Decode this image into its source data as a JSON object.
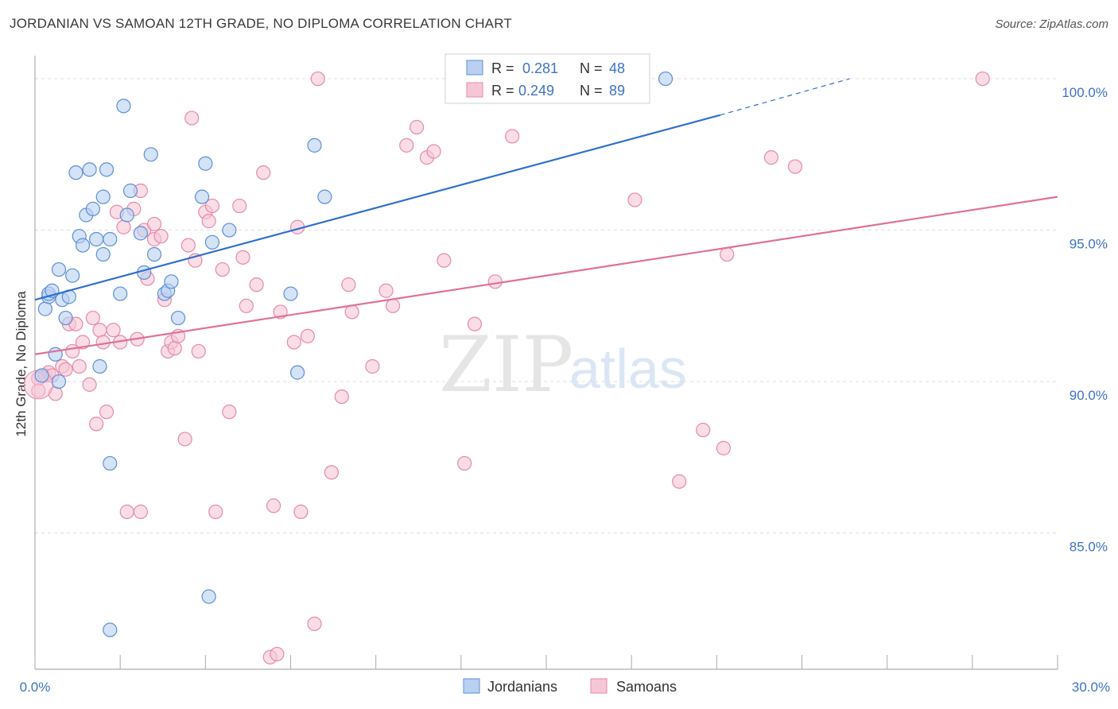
{
  "title": "JORDANIAN VS SAMOAN 12TH GRADE, NO DIPLOMA CORRELATION CHART",
  "source": "Source: ZipAtlas.com",
  "watermark": {
    "zip": "ZIP",
    "atlas": "atlas"
  },
  "colors": {
    "jordanian_fill": "#b9d0f2",
    "jordanian_stroke": "#5c8fd6",
    "jordanian_line": "#2f6fcf",
    "samoan_fill": "#f7c6d6",
    "samoan_stroke": "#e58aaa",
    "samoan_line": "#e0709a",
    "grid": "#dddddd",
    "axis_text": "#3f72c4"
  },
  "legend": {
    "rows": [
      {
        "r_label": "R =",
        "r_value": "0.281",
        "n_label": "N =",
        "n_value": "48"
      },
      {
        "r_label": "R =",
        "r_value": "0.249",
        "n_label": "N =",
        "n_value": "89"
      }
    ]
  },
  "bottom_legend": [
    "Jordanians",
    "Samoans"
  ],
  "chart_data": {
    "type": "scatter",
    "title": "JORDANIAN VS SAMOAN 12TH GRADE, NO DIPLOMA CORRELATION CHART",
    "xlabel": "",
    "ylabel": "12th Grade, No Diploma",
    "xlim": [
      0,
      30
    ],
    "ylim": [
      80.5,
      100.5
    ],
    "x_tick_labels": [
      "0.0%",
      "30.0%"
    ],
    "y_ticks": [
      85,
      90,
      95,
      100
    ],
    "y_tick_labels": [
      "85.0%",
      "90.0%",
      "95.0%",
      "100.0%"
    ],
    "grid": true,
    "series": [
      {
        "name": "Jordanians",
        "r": 0.281,
        "n": 48,
        "trend": {
          "x0": 0,
          "y0": 92.7,
          "x1": 20.1,
          "y1": 98.8,
          "dash_to_x": 23.9,
          "dash_to_y": 100.0
        },
        "points": [
          [
            0.2,
            90.2
          ],
          [
            0.3,
            92.4
          ],
          [
            0.4,
            92.8
          ],
          [
            0.4,
            92.9
          ],
          [
            0.5,
            93.0
          ],
          [
            0.6,
            90.9
          ],
          [
            0.7,
            90.0
          ],
          [
            0.7,
            93.7
          ],
          [
            0.8,
            92.7
          ],
          [
            0.9,
            92.1
          ],
          [
            1.0,
            92.8
          ],
          [
            1.1,
            93.5
          ],
          [
            1.2,
            96.9
          ],
          [
            1.3,
            94.8
          ],
          [
            1.4,
            94.5
          ],
          [
            1.5,
            95.5
          ],
          [
            1.6,
            97.0
          ],
          [
            1.7,
            95.7
          ],
          [
            1.8,
            94.7
          ],
          [
            1.9,
            90.5
          ],
          [
            2.0,
            96.1
          ],
          [
            2.0,
            94.2
          ],
          [
            2.1,
            97.0
          ],
          [
            2.2,
            94.7
          ],
          [
            2.5,
            92.9
          ],
          [
            2.6,
            99.1
          ],
          [
            2.7,
            95.5
          ],
          [
            2.8,
            96.3
          ],
          [
            3.1,
            94.9
          ],
          [
            3.2,
            93.6
          ],
          [
            3.4,
            97.5
          ],
          [
            3.5,
            94.2
          ],
          [
            3.8,
            92.9
          ],
          [
            3.9,
            93.0
          ],
          [
            4.0,
            93.3
          ],
          [
            4.2,
            92.1
          ],
          [
            4.9,
            96.1
          ],
          [
            5.0,
            97.2
          ],
          [
            5.2,
            94.6
          ],
          [
            5.7,
            95.0
          ],
          [
            7.5,
            92.9
          ],
          [
            7.7,
            90.3
          ],
          [
            8.2,
            97.8
          ],
          [
            8.5,
            96.1
          ],
          [
            2.2,
            87.3
          ],
          [
            5.1,
            82.9
          ],
          [
            2.2,
            81.8
          ],
          [
            18.5,
            100.0
          ]
        ]
      },
      {
        "name": "Samoans",
        "r": 0.249,
        "n": 89,
        "trend": {
          "x0": 0,
          "y0": 90.9,
          "x1": 30,
          "y1": 96.1
        },
        "points": [
          [
            0.1,
            90.1
          ],
          [
            0.1,
            89.7
          ],
          [
            0.3,
            90.2
          ],
          [
            0.4,
            90.3
          ],
          [
            0.5,
            90.2
          ],
          [
            0.6,
            89.6
          ],
          [
            0.8,
            90.5
          ],
          [
            0.9,
            90.4
          ],
          [
            1.0,
            91.9
          ],
          [
            1.1,
            91.0
          ],
          [
            1.2,
            91.9
          ],
          [
            1.3,
            90.5
          ],
          [
            1.4,
            91.3
          ],
          [
            1.6,
            89.9
          ],
          [
            1.7,
            92.1
          ],
          [
            1.8,
            88.6
          ],
          [
            1.9,
            91.7
          ],
          [
            2.0,
            91.3
          ],
          [
            2.1,
            89.0
          ],
          [
            2.3,
            91.7
          ],
          [
            2.4,
            95.6
          ],
          [
            2.5,
            91.3
          ],
          [
            2.6,
            95.1
          ],
          [
            2.7,
            85.7
          ],
          [
            2.9,
            95.7
          ],
          [
            3.0,
            91.4
          ],
          [
            3.1,
            96.3
          ],
          [
            3.1,
            85.7
          ],
          [
            3.2,
            95.0
          ],
          [
            3.3,
            93.4
          ],
          [
            3.5,
            94.7
          ],
          [
            3.5,
            95.2
          ],
          [
            3.7,
            94.8
          ],
          [
            3.8,
            92.7
          ],
          [
            3.9,
            91.0
          ],
          [
            4.0,
            91.3
          ],
          [
            4.1,
            91.1
          ],
          [
            4.2,
            91.5
          ],
          [
            4.4,
            88.1
          ],
          [
            4.5,
            94.5
          ],
          [
            4.6,
            98.7
          ],
          [
            4.7,
            94.0
          ],
          [
            4.8,
            91.0
          ],
          [
            5.0,
            95.6
          ],
          [
            5.1,
            95.3
          ],
          [
            5.2,
            95.8
          ],
          [
            5.3,
            85.7
          ],
          [
            5.5,
            93.7
          ],
          [
            5.7,
            89.0
          ],
          [
            6.0,
            95.8
          ],
          [
            6.1,
            94.1
          ],
          [
            6.2,
            92.5
          ],
          [
            6.5,
            93.2
          ],
          [
            6.7,
            96.9
          ],
          [
            6.9,
            80.9
          ],
          [
            7.0,
            85.9
          ],
          [
            7.1,
            81.0
          ],
          [
            7.2,
            92.3
          ],
          [
            7.6,
            91.3
          ],
          [
            7.7,
            95.1
          ],
          [
            7.8,
            85.7
          ],
          [
            8.0,
            91.5
          ],
          [
            8.2,
            82.0
          ],
          [
            8.3,
            100.0
          ],
          [
            8.7,
            87.0
          ],
          [
            9.0,
            89.5
          ],
          [
            9.2,
            93.2
          ],
          [
            9.3,
            92.3
          ],
          [
            9.9,
            90.5
          ],
          [
            10.3,
            93.0
          ],
          [
            10.5,
            92.5
          ],
          [
            10.9,
            97.8
          ],
          [
            11.2,
            98.4
          ],
          [
            11.5,
            97.4
          ],
          [
            11.7,
            97.6
          ],
          [
            12.0,
            94.0
          ],
          [
            12.6,
            87.3
          ],
          [
            12.9,
            91.9
          ],
          [
            13.5,
            93.3
          ],
          [
            14.0,
            98.1
          ],
          [
            15.2,
            100.0
          ],
          [
            17.6,
            96.0
          ],
          [
            18.9,
            86.7
          ],
          [
            19.6,
            88.4
          ],
          [
            20.2,
            87.8
          ],
          [
            20.3,
            94.2
          ],
          [
            21.6,
            97.4
          ],
          [
            22.3,
            97.1
          ],
          [
            27.8,
            100.0
          ]
        ]
      }
    ]
  }
}
